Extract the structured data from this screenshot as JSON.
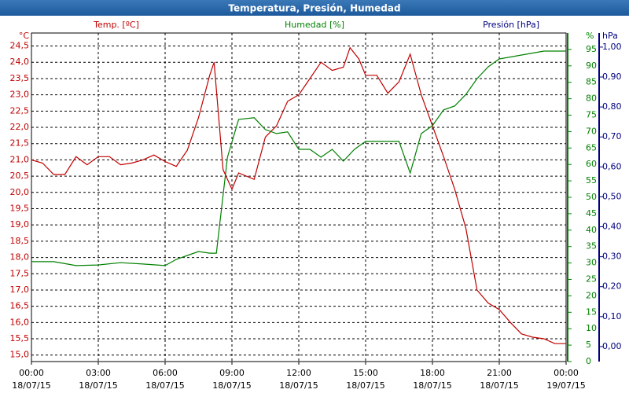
{
  "chart_data": {
    "type": "line",
    "title": "Temperatura, Presión, Humedad",
    "axis_units": {
      "y": "°C",
      "y2": "%",
      "y3": "hPa"
    },
    "axis_titles": {
      "y": "Temp. [ºC]",
      "y2": "Humedad [%]",
      "y3": "Presión [hPa]"
    },
    "axis_colors": {
      "y": "#c00000",
      "y2": "#008000",
      "y3": "#000080"
    },
    "grid": true,
    "xlim": [
      0,
      24
    ],
    "xticks": [
      {
        "value": 0,
        "label": "00:00",
        "sublabel": "18/07/15"
      },
      {
        "value": 3,
        "label": "03:00",
        "sublabel": "18/07/15"
      },
      {
        "value": 6,
        "label": "06:00",
        "sublabel": "18/07/15"
      },
      {
        "value": 9,
        "label": "09:00",
        "sublabel": "18/07/15"
      },
      {
        "value": 12,
        "label": "12:00",
        "sublabel": "18/07/15"
      },
      {
        "value": 15,
        "label": "15:00",
        "sublabel": "18/07/15"
      },
      {
        "value": 18,
        "label": "18:00",
        "sublabel": "18/07/15"
      },
      {
        "value": 21,
        "label": "21:00",
        "sublabel": "18/07/15"
      },
      {
        "value": 24,
        "label": "00:00",
        "sublabel": "19/07/15"
      }
    ],
    "ylim": [
      14.8,
      24.9
    ],
    "yticks": [
      {
        "value": 15,
        "label": "15,0"
      },
      {
        "value": 15.5,
        "label": "15,5"
      },
      {
        "value": 16,
        "label": "16,0"
      },
      {
        "value": 16.5,
        "label": "16,5"
      },
      {
        "value": 17,
        "label": "17,0"
      },
      {
        "value": 17.5,
        "label": "17,5"
      },
      {
        "value": 18,
        "label": "18,0"
      },
      {
        "value": 18.5,
        "label": "18,5"
      },
      {
        "value": 19,
        "label": "19,0"
      },
      {
        "value": 19.5,
        "label": "19,5"
      },
      {
        "value": 20,
        "label": "20,0"
      },
      {
        "value": 20.5,
        "label": "20,5"
      },
      {
        "value": 21,
        "label": "21,0"
      },
      {
        "value": 21.5,
        "label": "21,5"
      },
      {
        "value": 22,
        "label": "22,0"
      },
      {
        "value": 22.5,
        "label": "22,5"
      },
      {
        "value": 23,
        "label": "23,0"
      },
      {
        "value": 23.5,
        "label": "23,5"
      },
      {
        "value": 24,
        "label": "24,0"
      },
      {
        "value": 24.5,
        "label": "24,5"
      }
    ],
    "y2lim": [
      0,
      100
    ],
    "y2ticks": [
      0,
      5,
      10,
      15,
      20,
      25,
      30,
      35,
      40,
      45,
      50,
      55,
      60,
      65,
      70,
      75,
      80,
      85,
      90,
      95
    ],
    "y3lim": [
      -0.05,
      1.047
    ],
    "y3ticks": [
      {
        "value": 0,
        "label": "0,00"
      },
      {
        "value": 0.1,
        "label": "0,10"
      },
      {
        "value": 0.2,
        "label": "0,20"
      },
      {
        "value": 0.3,
        "label": "0,30"
      },
      {
        "value": 0.4,
        "label": "0,40"
      },
      {
        "value": 0.5,
        "label": "0,50"
      },
      {
        "value": 0.6,
        "label": "0,60"
      },
      {
        "value": 0.7,
        "label": "0,70"
      },
      {
        "value": 0.8,
        "label": "0,80"
      },
      {
        "value": 0.9,
        "label": "0,90"
      },
      {
        "value": 1,
        "label": "1,00"
      }
    ],
    "series": [
      {
        "name": "Temp. [ºC]",
        "color": "#c00000",
        "axis": "y",
        "x": [
          0,
          0.5,
          1,
          1.5,
          2,
          2.5,
          3,
          3.5,
          4,
          4.5,
          5,
          5.5,
          6,
          6.5,
          7,
          7.5,
          8,
          8.2,
          8.6,
          9,
          9.3,
          10,
          10.5,
          11,
          11.5,
          12,
          12.5,
          13,
          13.5,
          14,
          14.3,
          14.7,
          15,
          15.5,
          16,
          16.5,
          17,
          17.5,
          18,
          18.5,
          19,
          19.5,
          20,
          20.5,
          21,
          21.5,
          22,
          22.5,
          23,
          23.5,
          24
        ],
        "values": [
          21.0,
          20.9,
          20.55,
          20.55,
          21.1,
          20.85,
          21.1,
          21.1,
          20.85,
          20.9,
          21.0,
          21.15,
          20.95,
          20.8,
          21.3,
          22.3,
          23.6,
          24.0,
          20.7,
          20.1,
          20.6,
          20.4,
          21.7,
          22.05,
          22.8,
          23.0,
          23.5,
          24.0,
          23.75,
          23.85,
          24.45,
          24.1,
          23.6,
          23.6,
          23.05,
          23.4,
          24.25,
          23.0,
          22.05,
          21.1,
          20.1,
          18.9,
          17.0,
          16.6,
          16.4,
          16.0,
          15.65,
          15.55,
          15.5,
          15.35,
          15.35
        ]
      },
      {
        "name": "Humedad [%]",
        "color": "#008000",
        "axis": "y2",
        "x": [
          0,
          1,
          2,
          3,
          4,
          5,
          6,
          6.5,
          7,
          7.5,
          8,
          8.3,
          8.8,
          9.3,
          10,
          10.5,
          11,
          11.5,
          12,
          12.5,
          13,
          13.5,
          14,
          14.5,
          15,
          16,
          16.5,
          17,
          17.5,
          18,
          18.5,
          19,
          19.5,
          20,
          20.5,
          21,
          22,
          23,
          24
        ],
        "values": [
          30.4,
          30.4,
          29.2,
          29.4,
          30.1,
          29.7,
          29.2,
          31.1,
          32.3,
          33.5,
          33.0,
          33.0,
          62.2,
          73.7,
          74.2,
          70.6,
          69.4,
          69.9,
          64.6,
          64.6,
          62.2,
          64.6,
          61.0,
          64.6,
          67.0,
          67.0,
          67.0,
          57.4,
          69.4,
          71.8,
          76.6,
          77.8,
          81.3,
          86.1,
          89.7,
          92.1,
          93.3,
          94.5,
          94.5
        ]
      }
    ]
  }
}
